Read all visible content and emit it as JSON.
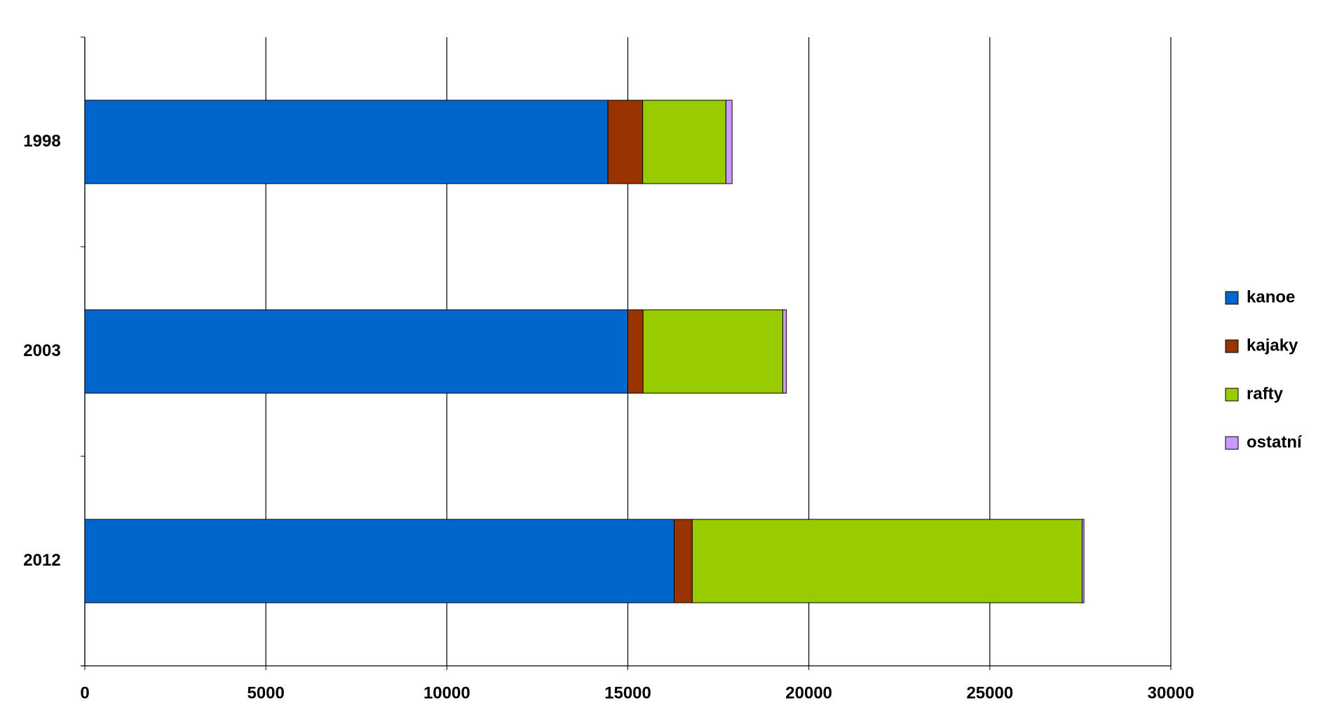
{
  "chart_data": {
    "type": "stacked-bar-horizontal",
    "categories": [
      "1998",
      "2003",
      "2012"
    ],
    "series": [
      {
        "name": "kanoe",
        "color": "#0066cc",
        "values": [
          14450,
          15000,
          16280
        ]
      },
      {
        "name": "kajaky",
        "color": "#993300",
        "values": [
          960,
          420,
          500
        ]
      },
      {
        "name": "rafty",
        "color": "#99cc00",
        "values": [
          2300,
          3860,
          10770
        ]
      },
      {
        "name": "ostatní",
        "color": "#cc99ff",
        "values": [
          170,
          100,
          50
        ]
      }
    ],
    "xlim": [
      0,
      30000
    ],
    "xticks": [
      0,
      5000,
      10000,
      15000,
      20000,
      25000,
      30000
    ],
    "grid": true,
    "legend": "right"
  }
}
